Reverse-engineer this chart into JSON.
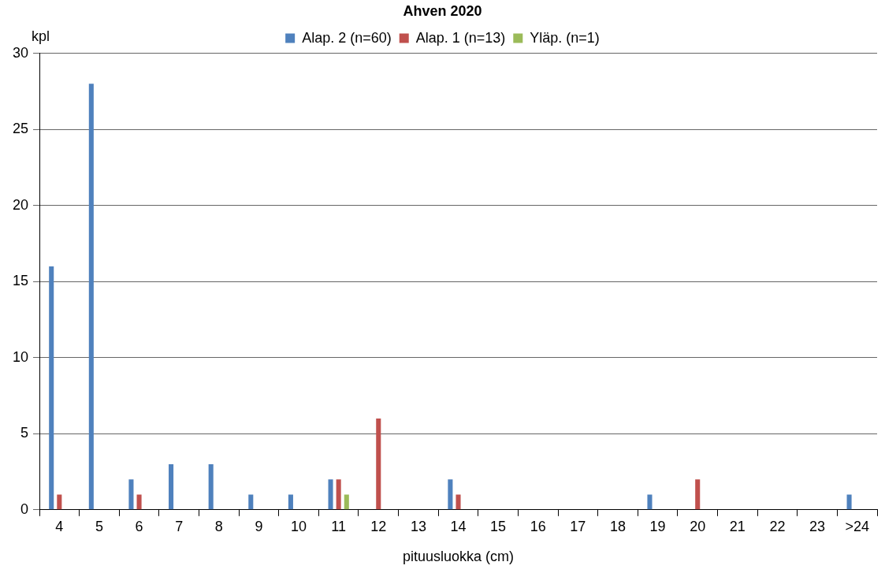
{
  "chart_data": {
    "type": "bar",
    "title": "Ahven 2020",
    "xlabel": "pituusluokka (cm)",
    "ylabel": "kpl",
    "categories": [
      "4",
      "5",
      "6",
      "7",
      "8",
      "9",
      "10",
      "11",
      "12",
      "13",
      "14",
      "15",
      "16",
      "17",
      "18",
      "19",
      "20",
      "21",
      "22",
      "23",
      ">24"
    ],
    "series": [
      {
        "name": "Alap. 2 (n=60)",
        "color": "#4f81bd",
        "values": [
          16,
          28,
          2,
          3,
          3,
          1,
          1,
          2,
          0,
          0,
          2,
          0,
          0,
          0,
          0,
          1,
          0,
          0,
          0,
          0,
          1
        ]
      },
      {
        "name": "Alap. 1 (n=13)",
        "color": "#c0504d",
        "values": [
          1,
          0,
          1,
          0,
          0,
          0,
          0,
          2,
          6,
          0,
          1,
          0,
          0,
          0,
          0,
          0,
          2,
          0,
          0,
          0,
          0
        ]
      },
      {
        "name": "Yläp. (n=1)",
        "color": "#9bbb59",
        "values": [
          0,
          0,
          0,
          0,
          0,
          0,
          0,
          1,
          0,
          0,
          0,
          0,
          0,
          0,
          0,
          0,
          0,
          0,
          0,
          0,
          0
        ]
      }
    ],
    "ylim": [
      0,
      30
    ],
    "yticks": [
      0,
      5,
      10,
      15,
      20,
      25,
      30
    ],
    "grid": "y",
    "legend": "top"
  }
}
